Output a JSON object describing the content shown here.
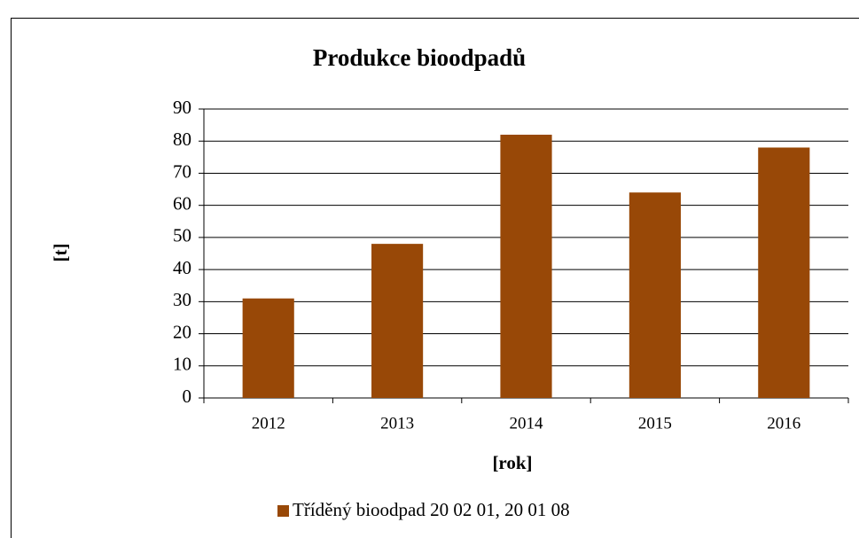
{
  "chart_data": {
    "type": "bar",
    "title": "Produkce bioodpadů",
    "x_label": "[rok]",
    "y_label": "[t]",
    "categories": [
      "2012",
      "2013",
      "2014",
      "2015",
      "2016"
    ],
    "series": [
      {
        "name": "Tříděný bioodpad 20 02 01, 20 01 08",
        "color": "#984807",
        "values": [
          31,
          48,
          82,
          64,
          78
        ]
      }
    ],
    "ylim": [
      0,
      90
    ],
    "yticks": [
      0,
      10,
      20,
      30,
      40,
      50,
      60,
      70,
      80,
      90
    ],
    "grid": true,
    "legend": "bottom"
  }
}
